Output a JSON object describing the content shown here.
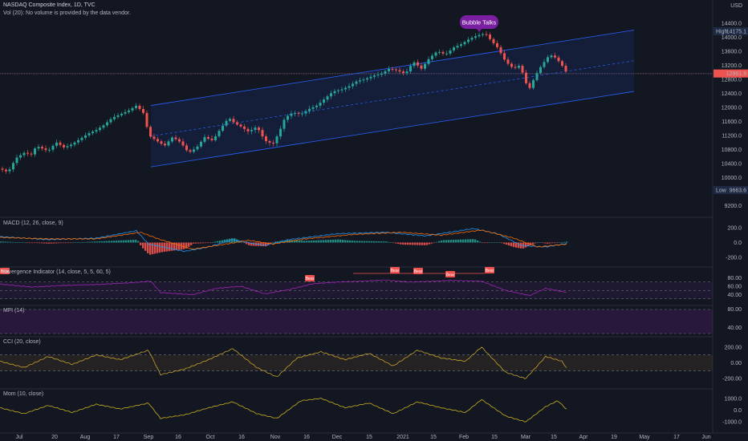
{
  "header": {
    "title": "NASDAQ Composite Index, 1D, TVC",
    "volume_note": "Vol (20): No volume is provided by the data vendor."
  },
  "currency": "USD",
  "annotation": "Bubble Talks",
  "badges": {
    "high_label": "High",
    "high_value": "14175.1",
    "low_label": "Low",
    "low_value": "9663.6",
    "last_value": "12961.9"
  },
  "colors": {
    "up": "#26a69a",
    "down": "#ef5350",
    "channel": "#2962ff",
    "annotation": "#7b1fa2",
    "macd": "#2196f3",
    "signal": "#ff6d00",
    "divergence": "#9c27b0",
    "cci": "#c8a22e",
    "mom": "#c8b01e"
  },
  "panels": {
    "macd": "MACD (12, 26, close, 9)",
    "div": "Divergence Indicator (14, close, 5, 5, 60, 5)",
    "mfi": "MFI (14)",
    "cci": "CCI (20, close)",
    "mom": "Mom (10, close)"
  },
  "divergence_labels": [
    "Bear",
    "Bear",
    "Bear",
    "Bear",
    "Bear",
    "Bear"
  ],
  "chart_data": {
    "type": "candlestick",
    "x_ticks": [
      "Jul",
      "20",
      "Aug",
      "17",
      "Sep",
      "16",
      "Oct",
      "16",
      "Nov",
      "16",
      "Dec",
      "15",
      "2021",
      "15",
      "Feb",
      "15",
      "Mar",
      "15",
      "Apr",
      "19",
      "May",
      "17",
      "Jun"
    ],
    "price_ticks": [
      "14400.0",
      "14000.0",
      "13600.0",
      "13200.0",
      "12800.0",
      "12400.0",
      "12000.0",
      "11600.0",
      "11200.0",
      "10800.0",
      "10400.0",
      "10000.0",
      "9200.0"
    ],
    "macd_ticks": [
      "200.0",
      "0.0",
      "-200.0"
    ],
    "div_ticks": [
      "80.00",
      "60.00",
      "40.00"
    ],
    "mfi_ticks": [
      "80.00",
      "40.00"
    ],
    "cci_ticks": [
      "200.00",
      "0.00",
      "-200.00"
    ],
    "mom_ticks": [
      "1000.0",
      "0.0",
      "-1000.0"
    ],
    "price_ylim": [
      9000,
      14600
    ],
    "price_path": [
      [
        0,
        10250
      ],
      [
        10,
        10150
      ],
      [
        20,
        10550
      ],
      [
        30,
        10700
      ],
      [
        40,
        10650
      ],
      [
        45,
        10900
      ],
      [
        60,
        10750
      ],
      [
        70,
        11000
      ],
      [
        80,
        10850
      ],
      [
        90,
        10950
      ],
      [
        100,
        11100
      ],
      [
        110,
        11250
      ],
      [
        120,
        11350
      ],
      [
        130,
        11500
      ],
      [
        140,
        11700
      ],
      [
        150,
        11800
      ],
      [
        160,
        11900
      ],
      [
        170,
        12050
      ],
      [
        180,
        11800
      ],
      [
        185,
        11200
      ],
      [
        195,
        11050
      ],
      [
        205,
        10900
      ],
      [
        215,
        11150
      ],
      [
        225,
        11000
      ],
      [
        235,
        10700
      ],
      [
        245,
        10850
      ],
      [
        255,
        11150
      ],
      [
        265,
        11050
      ],
      [
        275,
        11400
      ],
      [
        285,
        11700
      ],
      [
        292,
        11550
      ],
      [
        300,
        11450
      ],
      [
        310,
        11300
      ],
      [
        320,
        11450
      ],
      [
        330,
        11050
      ],
      [
        340,
        10950
      ],
      [
        348,
        11300
      ],
      [
        355,
        11700
      ],
      [
        365,
        11850
      ],
      [
        375,
        11800
      ],
      [
        385,
        11950
      ],
      [
        395,
        12050
      ],
      [
        405,
        12250
      ],
      [
        415,
        12450
      ],
      [
        425,
        12500
      ],
      [
        435,
        12600
      ],
      [
        445,
        12750
      ],
      [
        455,
        12800
      ],
      [
        465,
        12900
      ],
      [
        475,
        12950
      ],
      [
        485,
        13100
      ],
      [
        495,
        13050
      ],
      [
        505,
        12950
      ],
      [
        515,
        13300
      ],
      [
        525,
        13100
      ],
      [
        535,
        13400
      ],
      [
        545,
        13600
      ],
      [
        555,
        13500
      ],
      [
        565,
        13700
      ],
      [
        575,
        13800
      ],
      [
        585,
        13950
      ],
      [
        595,
        14050
      ],
      [
        605,
        14100
      ],
      [
        612,
        13900
      ],
      [
        620,
        13700
      ],
      [
        630,
        13300
      ],
      [
        640,
        13100
      ],
      [
        648,
        13200
      ],
      [
        655,
        12700
      ],
      [
        660,
        12550
      ],
      [
        667,
        12900
      ],
      [
        675,
        13200
      ],
      [
        685,
        13500
      ],
      [
        693,
        13400
      ],
      [
        700,
        13200
      ],
      [
        707,
        12950
      ]
    ],
    "macd_ylim": [
      -300,
      300
    ],
    "macd_path": [
      [
        0,
        80
      ],
      [
        60,
        40
      ],
      [
        120,
        60
      ],
      [
        170,
        160
      ],
      [
        185,
        -20
      ],
      [
        230,
        -120
      ],
      [
        260,
        -60
      ],
      [
        290,
        40
      ],
      [
        330,
        -40
      ],
      [
        360,
        40
      ],
      [
        420,
        120
      ],
      [
        480,
        140
      ],
      [
        530,
        90
      ],
      [
        590,
        190
      ],
      [
        620,
        120
      ],
      [
        650,
        -40
      ],
      [
        680,
        -60
      ],
      [
        707,
        -10
      ]
    ],
    "signal_path": [
      [
        0,
        70
      ],
      [
        60,
        50
      ],
      [
        120,
        50
      ],
      [
        175,
        140
      ],
      [
        200,
        40
      ],
      [
        240,
        -90
      ],
      [
        270,
        -40
      ],
      [
        310,
        30
      ],
      [
        340,
        -20
      ],
      [
        380,
        50
      ],
      [
        440,
        110
      ],
      [
        500,
        140
      ],
      [
        550,
        100
      ],
      [
        600,
        170
      ],
      [
        640,
        60
      ],
      [
        670,
        -60
      ],
      [
        707,
        -20
      ]
    ],
    "div_ylim": [
      20,
      100
    ],
    "div_path": [
      [
        0,
        65
      ],
      [
        40,
        58
      ],
      [
        80,
        62
      ],
      [
        120,
        64
      ],
      [
        160,
        68
      ],
      [
        188,
        72
      ],
      [
        200,
        45
      ],
      [
        240,
        40
      ],
      [
        270,
        55
      ],
      [
        300,
        60
      ],
      [
        330,
        42
      ],
      [
        360,
        52
      ],
      [
        390,
        66
      ],
      [
        420,
        70
      ],
      [
        450,
        72
      ],
      [
        480,
        75
      ],
      [
        510,
        70
      ],
      [
        540,
        72
      ],
      [
        560,
        74
      ],
      [
        600,
        72
      ],
      [
        630,
        50
      ],
      [
        660,
        38
      ],
      [
        680,
        55
      ],
      [
        707,
        45
      ]
    ],
    "cci_ylim": [
      -300,
      300
    ],
    "cci_path": [
      [
        0,
        20
      ],
      [
        30,
        -60
      ],
      [
        60,
        80
      ],
      [
        90,
        -20
      ],
      [
        120,
        100
      ],
      [
        150,
        40
      ],
      [
        185,
        160
      ],
      [
        200,
        -150
      ],
      [
        230,
        -80
      ],
      [
        260,
        40
      ],
      [
        290,
        180
      ],
      [
        320,
        -60
      ],
      [
        345,
        -180
      ],
      [
        370,
        60
      ],
      [
        400,
        140
      ],
      [
        430,
        40
      ],
      [
        460,
        120
      ],
      [
        490,
        -40
      ],
      [
        520,
        160
      ],
      [
        550,
        60
      ],
      [
        580,
        20
      ],
      [
        600,
        200
      ],
      [
        630,
        -120
      ],
      [
        655,
        -200
      ],
      [
        680,
        80
      ],
      [
        700,
        20
      ],
      [
        707,
        -80
      ]
    ],
    "mom_ylim": [
      -1600,
      1600
    ],
    "mom_path": [
      [
        0,
        200
      ],
      [
        30,
        -300
      ],
      [
        60,
        400
      ],
      [
        90,
        -200
      ],
      [
        120,
        500
      ],
      [
        150,
        100
      ],
      [
        185,
        600
      ],
      [
        200,
        -700
      ],
      [
        230,
        -400
      ],
      [
        260,
        200
      ],
      [
        290,
        700
      ],
      [
        320,
        -300
      ],
      [
        345,
        -700
      ],
      [
        375,
        800
      ],
      [
        400,
        1000
      ],
      [
        430,
        200
      ],
      [
        460,
        600
      ],
      [
        490,
        -300
      ],
      [
        520,
        700
      ],
      [
        550,
        200
      ],
      [
        580,
        -200
      ],
      [
        600,
        900
      ],
      [
        630,
        -500
      ],
      [
        655,
        -1000
      ],
      [
        680,
        300
      ],
      [
        695,
        800
      ],
      [
        707,
        0
      ]
    ]
  }
}
